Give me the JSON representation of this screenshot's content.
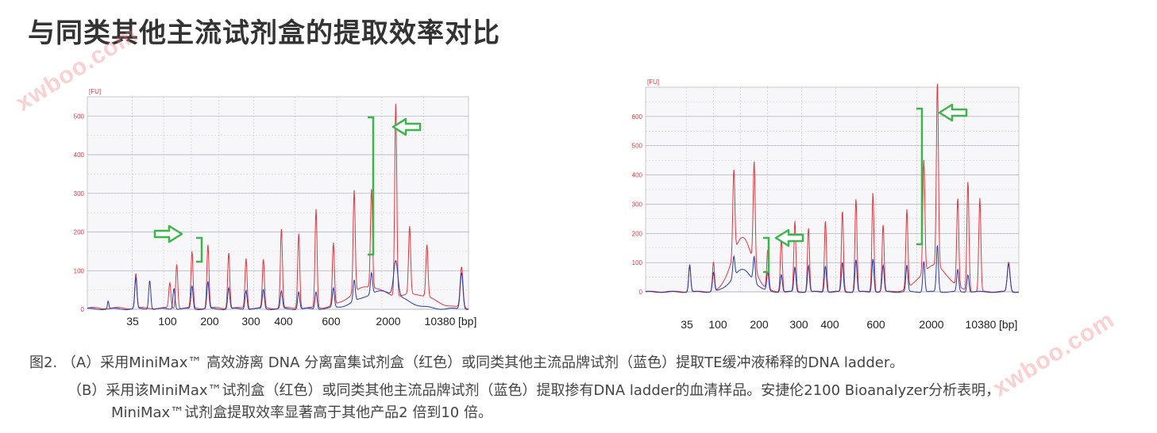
{
  "title": "与同类其他主流试剂盒的提取效率对比",
  "watermark": "xwboo.com",
  "colors": {
    "kit": "#e0383e",
    "other": "#2a3aa8",
    "annotation": "#3cb54a",
    "grid": "#9aa0b0"
  },
  "chart_data": [
    {
      "type": "line",
      "panel": "A",
      "y_unit": "[FU]",
      "x_unit": "[bp]",
      "ylim": [
        0,
        550
      ],
      "yticks": [
        0,
        100,
        200,
        300,
        400,
        500
      ],
      "xtick_labels": [
        "35",
        "100",
        "200",
        "300",
        "400",
        "600",
        "2000",
        "10380"
      ],
      "series": [
        {
          "color_key": "kit",
          "baseline": 3,
          "peaks": [
            {
              "pos": 0.14,
              "h": 90,
              "w": 0.003
            },
            {
              "pos": 0.238,
              "h": 65,
              "w": 0.003
            },
            {
              "pos": 0.258,
              "h": 115,
              "w": 0.003
            },
            {
              "pos": 0.302,
              "h": 145,
              "w": 0.003
            },
            {
              "pos": 0.348,
              "h": 165,
              "w": 0.003
            },
            {
              "pos": 0.408,
              "h": 145,
              "w": 0.003
            },
            {
              "pos": 0.458,
              "h": 130,
              "w": 0.003
            },
            {
              "pos": 0.508,
              "h": 125,
              "w": 0.003
            },
            {
              "pos": 0.56,
              "h": 205,
              "w": 0.003
            },
            {
              "pos": 0.61,
              "h": 195,
              "w": 0.003
            },
            {
              "pos": 0.66,
              "h": 255,
              "w": 0.003
            },
            {
              "pos": 0.71,
              "h": 160,
              "w": 0.003
            },
            {
              "pos": 0.77,
              "h": 265,
              "w": 0.003
            },
            {
              "pos": 0.82,
              "h": 255,
              "w": 0.003
            },
            {
              "pos": 0.89,
              "h": 500,
              "w": 0.003
            },
            {
              "pos": 0.93,
              "h": 175,
              "w": 0.003
            },
            {
              "pos": 0.98,
              "h": 135,
              "w": 0.003
            },
            {
              "pos": 0.95,
              "h": 35,
              "w": 0.05
            },
            {
              "pos": 0.81,
              "h": 55,
              "w": 0.05
            },
            {
              "pos": 1.08,
              "h": 105,
              "w": 0.004
            }
          ]
        },
        {
          "color_key": "other",
          "baseline": 1,
          "peaks": [
            {
              "pos": 0.06,
              "h": 20,
              "w": 0.002
            },
            {
              "pos": 0.14,
              "h": 80,
              "w": 0.003
            },
            {
              "pos": 0.18,
              "h": 75,
              "w": 0.003
            },
            {
              "pos": 0.25,
              "h": 55,
              "w": 0.003
            },
            {
              "pos": 0.302,
              "h": 60,
              "w": 0.003
            },
            {
              "pos": 0.348,
              "h": 70,
              "w": 0.003
            },
            {
              "pos": 0.408,
              "h": 55,
              "w": 0.003
            },
            {
              "pos": 0.458,
              "h": 50,
              "w": 0.003
            },
            {
              "pos": 0.508,
              "h": 50,
              "w": 0.003
            },
            {
              "pos": 0.56,
              "h": 45,
              "w": 0.003
            },
            {
              "pos": 0.61,
              "h": 45,
              "w": 0.003
            },
            {
              "pos": 0.66,
              "h": 45,
              "w": 0.003
            },
            {
              "pos": 0.71,
              "h": 50,
              "w": 0.003
            },
            {
              "pos": 0.77,
              "h": 55,
              "w": 0.003
            },
            {
              "pos": 0.82,
              "h": 55,
              "w": 0.003
            },
            {
              "pos": 0.89,
              "h": 90,
              "w": 0.006
            },
            {
              "pos": 0.85,
              "h": 45,
              "w": 0.06
            },
            {
              "pos": 1.08,
              "h": 95,
              "w": 0.004
            }
          ]
        }
      ]
    },
    {
      "type": "line",
      "panel": "B",
      "y_unit": "[FU]",
      "x_unit": "[bp]",
      "ylim": [
        0,
        700
      ],
      "yticks": [
        0,
        100,
        200,
        300,
        400,
        500,
        600
      ],
      "xtick_labels": [
        "35",
        "100",
        "200",
        "300",
        "400",
        "600",
        "2000",
        "10380"
      ],
      "series": [
        {
          "color_key": "kit",
          "baseline": 0,
          "peaks": [
            {
              "pos": 0.13,
              "h": 95,
              "w": 0.003
            },
            {
              "pos": 0.2,
              "h": 100,
              "w": 0.003
            },
            {
              "pos": 0.26,
              "h": 290,
              "w": 0.003
            },
            {
              "pos": 0.32,
              "h": 355,
              "w": 0.003
            },
            {
              "pos": 0.285,
              "h": 185,
              "w": 0.03
            },
            {
              "pos": 0.36,
              "h": 135,
              "w": 0.003
            },
            {
              "pos": 0.4,
              "h": 180,
              "w": 0.003
            },
            {
              "pos": 0.44,
              "h": 240,
              "w": 0.003
            },
            {
              "pos": 0.48,
              "h": 220,
              "w": 0.003
            },
            {
              "pos": 0.53,
              "h": 245,
              "w": 0.003
            },
            {
              "pos": 0.58,
              "h": 275,
              "w": 0.003
            },
            {
              "pos": 0.62,
              "h": 320,
              "w": 0.003
            },
            {
              "pos": 0.67,
              "h": 340,
              "w": 0.003
            },
            {
              "pos": 0.7,
              "h": 230,
              "w": 0.003
            },
            {
              "pos": 0.77,
              "h": 270,
              "w": 0.003
            },
            {
              "pos": 0.82,
              "h": 385,
              "w": 0.003
            },
            {
              "pos": 0.86,
              "h": 630,
              "w": 0.003
            },
            {
              "pos": 0.85,
              "h": 90,
              "w": 0.04
            },
            {
              "pos": 0.92,
              "h": 300,
              "w": 0.003
            },
            {
              "pos": 0.95,
              "h": 375,
              "w": 0.003
            },
            {
              "pos": 0.985,
              "h": 320,
              "w": 0.003
            },
            {
              "pos": 1.07,
              "h": 100,
              "w": 0.004
            }
          ]
        },
        {
          "color_key": "other",
          "baseline": 0,
          "peaks": [
            {
              "pos": 0.13,
              "h": 90,
              "w": 0.003
            },
            {
              "pos": 0.2,
              "h": 65,
              "w": 0.003
            },
            {
              "pos": 0.26,
              "h": 70,
              "w": 0.003
            },
            {
              "pos": 0.285,
              "h": 75,
              "w": 0.03
            },
            {
              "pos": 0.32,
              "h": 85,
              "w": 0.003
            },
            {
              "pos": 0.36,
              "h": 65,
              "w": 0.003
            },
            {
              "pos": 0.4,
              "h": 60,
              "w": 0.003
            },
            {
              "pos": 0.44,
              "h": 85,
              "w": 0.003
            },
            {
              "pos": 0.48,
              "h": 90,
              "w": 0.003
            },
            {
              "pos": 0.53,
              "h": 90,
              "w": 0.003
            },
            {
              "pos": 0.58,
              "h": 100,
              "w": 0.003
            },
            {
              "pos": 0.62,
              "h": 110,
              "w": 0.003
            },
            {
              "pos": 0.67,
              "h": 115,
              "w": 0.003
            },
            {
              "pos": 0.7,
              "h": 90,
              "w": 0.003
            },
            {
              "pos": 0.77,
              "h": 90,
              "w": 0.003
            },
            {
              "pos": 0.82,
              "h": 105,
              "w": 0.003
            },
            {
              "pos": 0.86,
              "h": 160,
              "w": 0.003
            },
            {
              "pos": 0.92,
              "h": 75,
              "w": 0.003
            },
            {
              "pos": 0.95,
              "h": 60,
              "w": 0.003
            },
            {
              "pos": 1.07,
              "h": 95,
              "w": 0.004
            }
          ]
        }
      ]
    }
  ],
  "caption": {
    "line1": "图2. （A）采用MiniMax™ 高效游离 DNA 分离富集试剂盒（红色）或同类其他主流品牌试剂（蓝色）提取TE缓冲液稀释的DNA ladder。",
    "line2": "（B）采用该MiniMax™试剂盒（红色）或同类其他主流品牌试剂（蓝色）提取掺有DNA ladder的血清样品。安捷伦2100 Bioanalyzer分析表明，",
    "line3": "MiniMax™试剂盒提取效率显著高于其他产品2 倍到10 倍。"
  }
}
